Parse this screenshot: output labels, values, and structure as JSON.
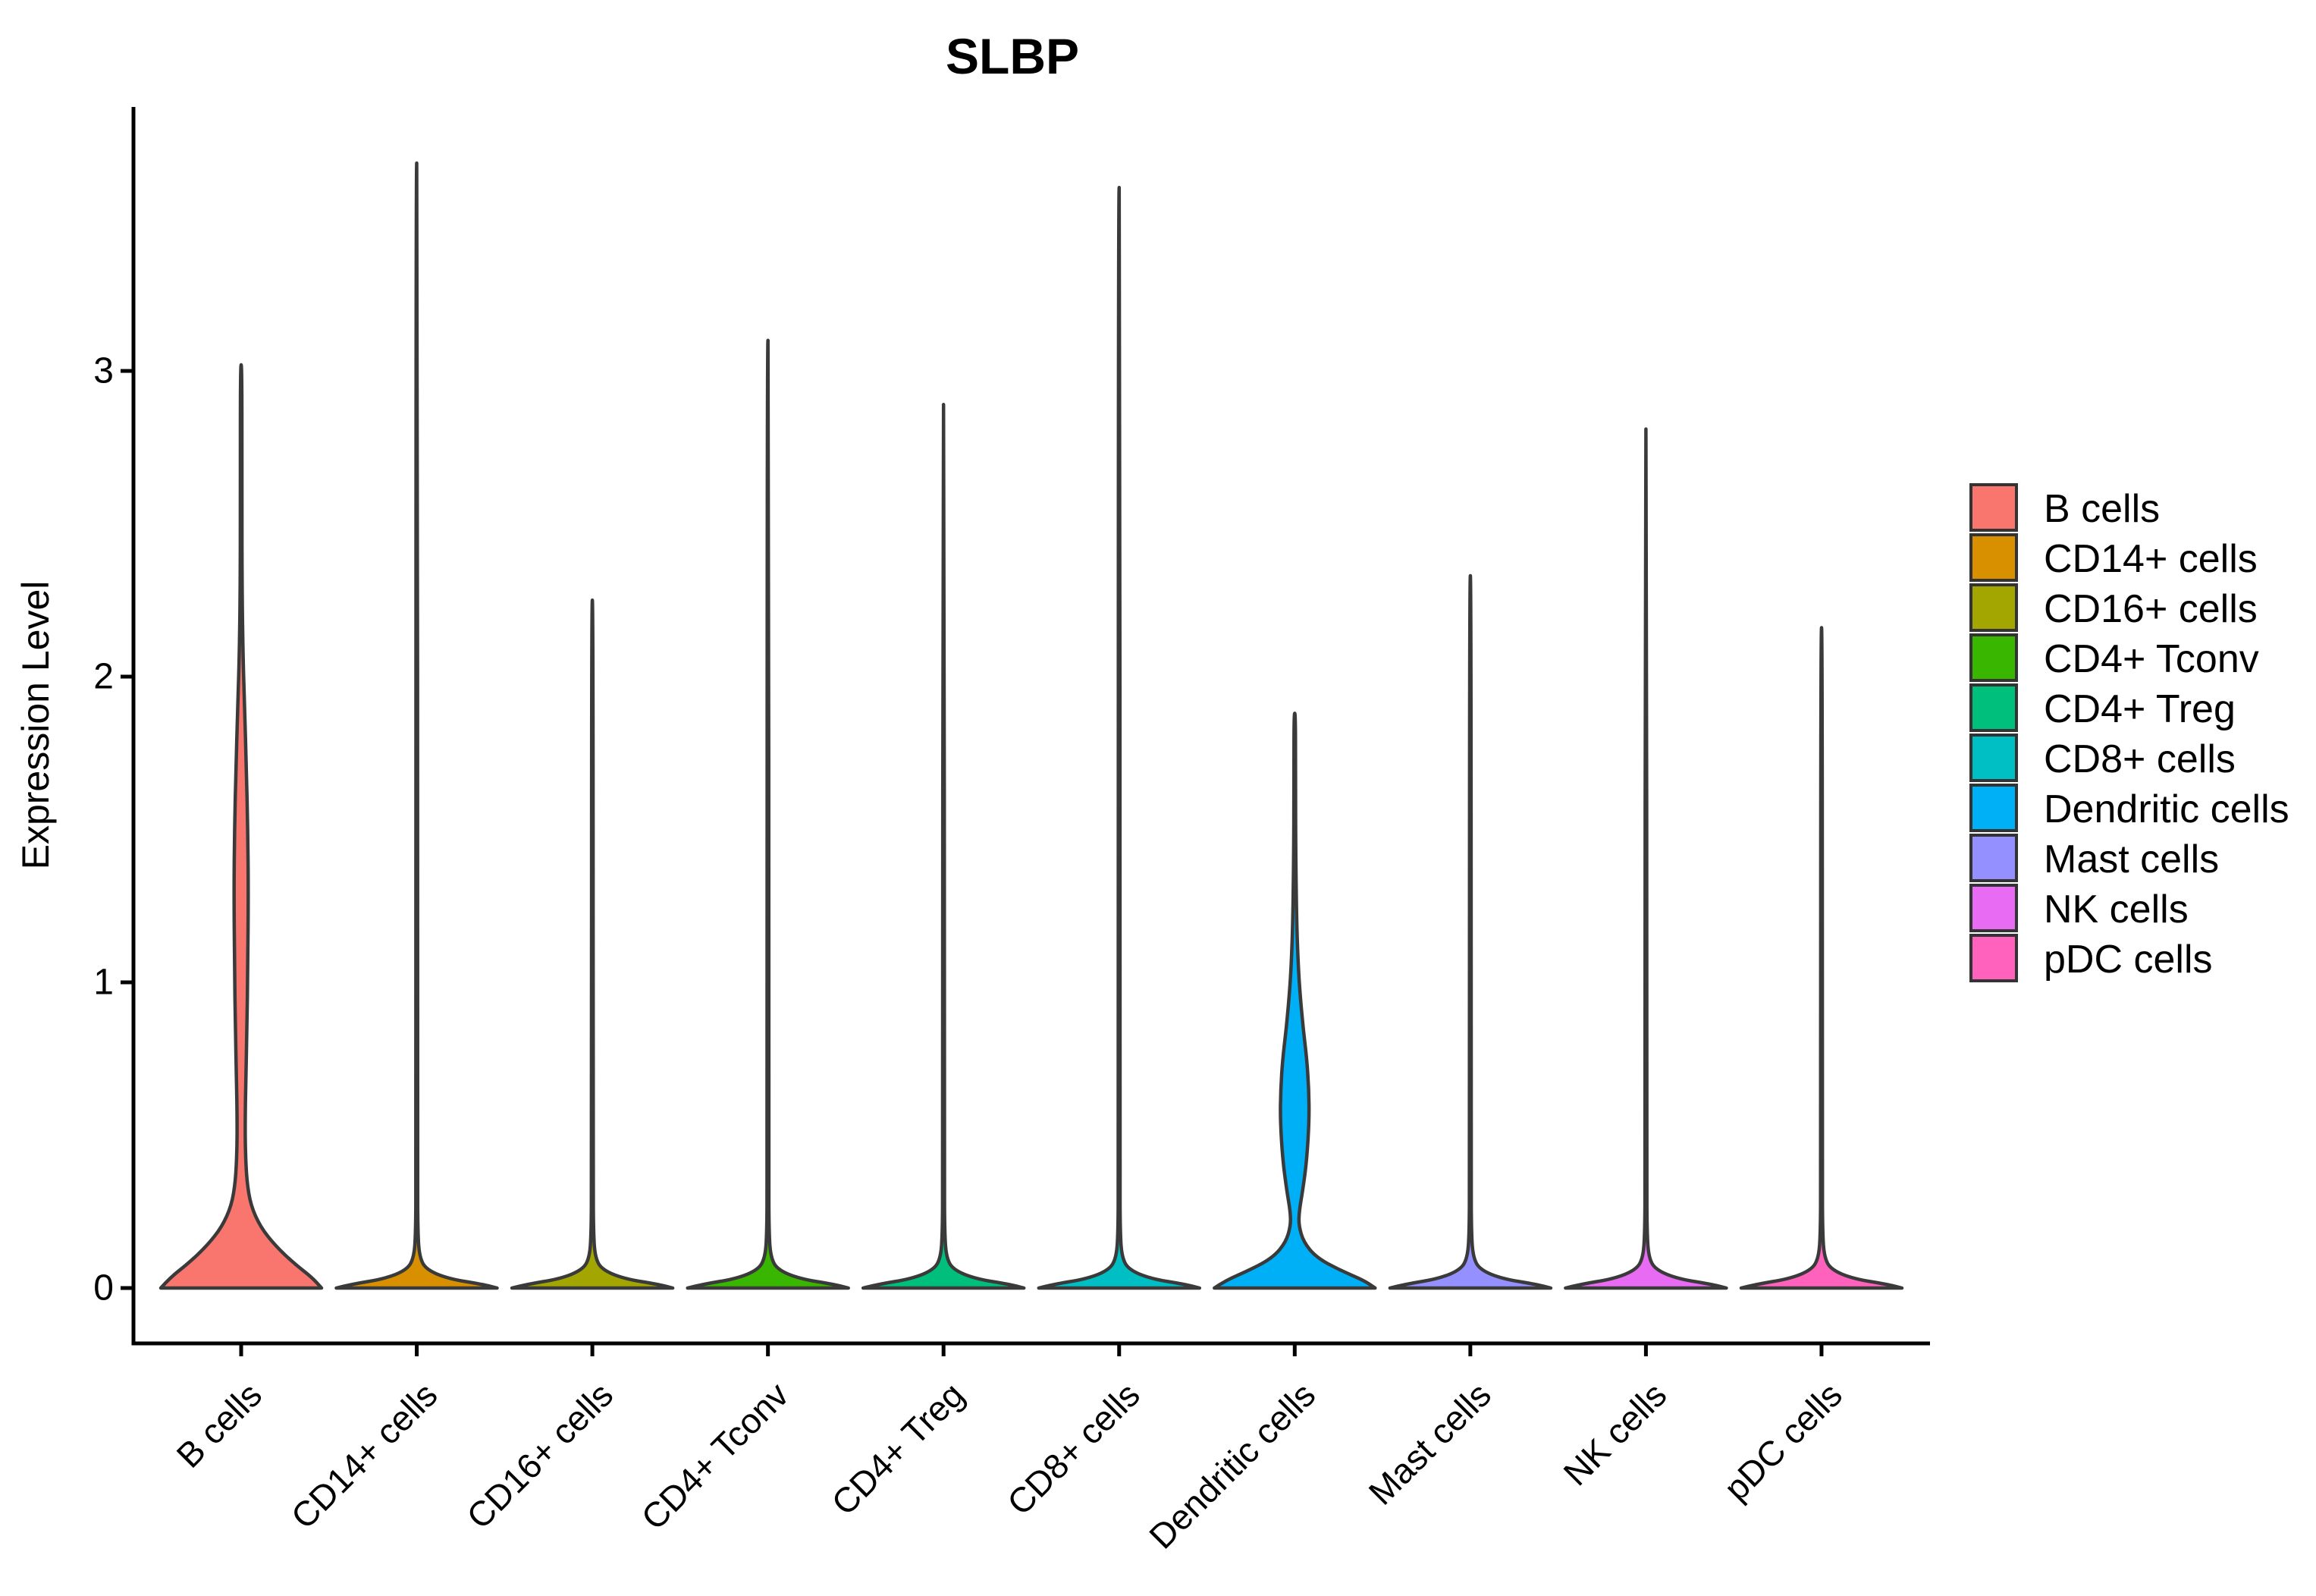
{
  "title": "SLBP",
  "y_axis": {
    "label": "Expression Level",
    "ticks": [
      "0",
      "1",
      "2",
      "3"
    ]
  },
  "x_axis": {
    "categories": [
      "B cells",
      "CD14+ cells",
      "CD16+ cells",
      "CD4+ Tconv",
      "CD4+ Treg",
      "CD8+ cells",
      "Dendritic cells",
      "Mast cells",
      "NK cells",
      "pDC cells"
    ]
  },
  "legend": {
    "position": "right",
    "entries": [
      {
        "label": "B cells",
        "color": "#F8766D"
      },
      {
        "label": "CD14+ cells",
        "color": "#D89000"
      },
      {
        "label": "CD16+ cells",
        "color": "#A3A500"
      },
      {
        "label": "CD4+ Tconv",
        "color": "#39B600"
      },
      {
        "label": "CD4+ Treg",
        "color": "#00BF7D"
      },
      {
        "label": "CD8+ cells",
        "color": "#00BFC4"
      },
      {
        "label": "Dendritic cells",
        "color": "#00B0F6"
      },
      {
        "label": "Mast cells",
        "color": "#9590FF"
      },
      {
        "label": "NK cells",
        "color": "#E76BF3"
      },
      {
        "label": "pDC cells",
        "color": "#FF62BC"
      }
    ]
  },
  "style_colors": {
    "violin_outline": "#3a3a3a",
    "axis": "#000000",
    "background": "#ffffff"
  },
  "chart_data": {
    "type": "violin",
    "title": "SLBP",
    "xlabel": "",
    "ylabel": "Expression Level",
    "ylim": [
      -0.18,
      3.87
    ],
    "yticks": [
      0,
      1,
      2,
      3
    ],
    "grid": false,
    "legend_position": "right",
    "categories": [
      "B cells",
      "CD14+ cells",
      "CD16+ cells",
      "CD4+ Tconv",
      "CD4+ Treg",
      "CD8+ cells",
      "Dendritic cells",
      "Mast cells",
      "NK cells",
      "pDC cells"
    ],
    "series": [
      {
        "name": "B cells",
        "color": "#F8766D",
        "max_expression": 3.02,
        "profile": [
          [
            0,
            1.0
          ],
          [
            0.035,
            0.88
          ],
          [
            0.08,
            0.66
          ],
          [
            0.14,
            0.42
          ],
          [
            0.2,
            0.24
          ],
          [
            0.27,
            0.12
          ],
          [
            0.35,
            0.07
          ],
          [
            0.45,
            0.052
          ],
          [
            0.55,
            0.05
          ],
          [
            0.68,
            0.058
          ],
          [
            0.85,
            0.072
          ],
          [
            1.05,
            0.082
          ],
          [
            1.3,
            0.09
          ],
          [
            1.5,
            0.082
          ],
          [
            1.7,
            0.065
          ],
          [
            1.9,
            0.042
          ],
          [
            2.05,
            0.025
          ],
          [
            2.25,
            0.012
          ],
          [
            2.6,
            0.009
          ],
          [
            3.02,
            0.009
          ]
        ]
      },
      {
        "name": "CD14+ cells",
        "color": "#D89000",
        "max_expression": 3.68,
        "profile": [
          [
            0,
            1.0
          ],
          [
            0.012,
            0.82
          ],
          [
            0.03,
            0.4
          ],
          [
            0.06,
            0.12
          ],
          [
            0.1,
            0.035
          ],
          [
            0.18,
            0.014
          ],
          [
            0.35,
            0.01
          ],
          [
            3.68,
            0.009
          ]
        ]
      },
      {
        "name": "CD16+ cells",
        "color": "#A3A500",
        "max_expression": 2.25,
        "profile": [
          [
            0,
            1.0
          ],
          [
            0.012,
            0.82
          ],
          [
            0.03,
            0.4
          ],
          [
            0.06,
            0.12
          ],
          [
            0.1,
            0.035
          ],
          [
            0.18,
            0.014
          ],
          [
            0.35,
            0.01
          ],
          [
            2.25,
            0.009
          ]
        ]
      },
      {
        "name": "CD4+ Tconv",
        "color": "#39B600",
        "max_expression": 3.1,
        "profile": [
          [
            0,
            1.0
          ],
          [
            0.012,
            0.82
          ],
          [
            0.03,
            0.4
          ],
          [
            0.06,
            0.12
          ],
          [
            0.1,
            0.035
          ],
          [
            0.18,
            0.014
          ],
          [
            0.35,
            0.01
          ],
          [
            3.1,
            0.009
          ]
        ]
      },
      {
        "name": "CD4+ Treg",
        "color": "#00BF7D",
        "max_expression": 2.89,
        "profile": [
          [
            0,
            1.0
          ],
          [
            0.012,
            0.82
          ],
          [
            0.03,
            0.4
          ],
          [
            0.06,
            0.12
          ],
          [
            0.1,
            0.035
          ],
          [
            0.18,
            0.014
          ],
          [
            0.35,
            0.01
          ],
          [
            2.89,
            0.009
          ]
        ]
      },
      {
        "name": "CD8+ cells",
        "color": "#00BFC4",
        "max_expression": 3.6,
        "profile": [
          [
            0,
            1.0
          ],
          [
            0.012,
            0.82
          ],
          [
            0.03,
            0.4
          ],
          [
            0.06,
            0.12
          ],
          [
            0.1,
            0.035
          ],
          [
            0.18,
            0.014
          ],
          [
            0.35,
            0.01
          ],
          [
            3.6,
            0.009
          ]
        ]
      },
      {
        "name": "Dendritic cells",
        "color": "#00B0F6",
        "max_expression": 1.88,
        "profile": [
          [
            0,
            1.0
          ],
          [
            0.025,
            0.86
          ],
          [
            0.06,
            0.55
          ],
          [
            0.1,
            0.27
          ],
          [
            0.15,
            0.11
          ],
          [
            0.205,
            0.05
          ],
          [
            0.25,
            0.055
          ],
          [
            0.32,
            0.1
          ],
          [
            0.42,
            0.15
          ],
          [
            0.55,
            0.18
          ],
          [
            0.65,
            0.175
          ],
          [
            0.75,
            0.15
          ],
          [
            0.85,
            0.105
          ],
          [
            0.95,
            0.07
          ],
          [
            1.06,
            0.042
          ],
          [
            1.2,
            0.024
          ],
          [
            1.4,
            0.013
          ],
          [
            1.65,
            0.01
          ],
          [
            1.88,
            0.009
          ]
        ]
      },
      {
        "name": "Mast cells",
        "color": "#9590FF",
        "max_expression": 2.33,
        "profile": [
          [
            0,
            1.0
          ],
          [
            0.012,
            0.82
          ],
          [
            0.03,
            0.4
          ],
          [
            0.06,
            0.12
          ],
          [
            0.1,
            0.035
          ],
          [
            0.18,
            0.014
          ],
          [
            0.35,
            0.01
          ],
          [
            2.33,
            0.009
          ]
        ]
      },
      {
        "name": "NK cells",
        "color": "#E76BF3",
        "max_expression": 2.81,
        "profile": [
          [
            0,
            1.0
          ],
          [
            0.012,
            0.82
          ],
          [
            0.03,
            0.4
          ],
          [
            0.06,
            0.12
          ],
          [
            0.1,
            0.035
          ],
          [
            0.18,
            0.014
          ],
          [
            0.35,
            0.01
          ],
          [
            2.81,
            0.009
          ]
        ]
      },
      {
        "name": "pDC cells",
        "color": "#FF62BC",
        "max_expression": 2.16,
        "profile": [
          [
            0,
            1.0
          ],
          [
            0.012,
            0.82
          ],
          [
            0.03,
            0.4
          ],
          [
            0.06,
            0.12
          ],
          [
            0.1,
            0.035
          ],
          [
            0.18,
            0.014
          ],
          [
            0.35,
            0.01
          ],
          [
            2.16,
            0.009
          ]
        ]
      }
    ]
  }
}
